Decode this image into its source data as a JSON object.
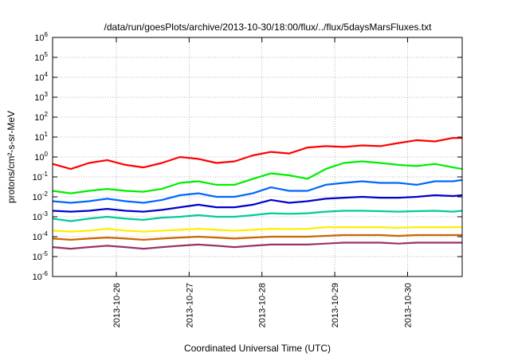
{
  "chart_data": {
    "type": "line",
    "title": "/data/run/goesPlots/archive/2013-10-30/18:00/flux/../flux/5daysMarsFluxes.txt",
    "xlabel": "Coordinated Universal Time (UTC)",
    "ylabel": "protons/cm²-s-sr-MeV",
    "yscale": "log",
    "xlim": [
      "2013-10-25 03:00",
      "2013-10-30 18:00"
    ],
    "ylim": [
      1e-06,
      1000000.0
    ],
    "x_ticks": [
      "2013-10-26",
      "2013-10-27",
      "2013-10-28",
      "2013-10-29",
      "2013-10-30"
    ],
    "y_ticks": [
      {
        "base": "10",
        "exp": "-6"
      },
      {
        "base": "10",
        "exp": "-5"
      },
      {
        "base": "10",
        "exp": "-4"
      },
      {
        "base": "10",
        "exp": "-3"
      },
      {
        "base": "10",
        "exp": "-2"
      },
      {
        "base": "10",
        "exp": "-1"
      },
      {
        "base": "10",
        "exp": "0"
      },
      {
        "base": "10",
        "exp": "1"
      },
      {
        "base": "10",
        "exp": "2"
      },
      {
        "base": "10",
        "exp": "3"
      },
      {
        "base": "10",
        "exp": "4"
      },
      {
        "base": "10",
        "exp": "5"
      },
      {
        "base": "10",
        "exp": "6"
      }
    ],
    "grid": true,
    "legend": "none",
    "x_dates": [
      "2013-10-25 03:00",
      "2013-10-25 09:00",
      "2013-10-25 15:00",
      "2013-10-25 21:00",
      "2013-10-26 03:00",
      "2013-10-26 09:00",
      "2013-10-26 15:00",
      "2013-10-26 21:00",
      "2013-10-27 03:00",
      "2013-10-27 09:00",
      "2013-10-27 15:00",
      "2013-10-27 21:00",
      "2013-10-28 03:00",
      "2013-10-28 09:00",
      "2013-10-28 15:00",
      "2013-10-28 21:00",
      "2013-10-29 03:00",
      "2013-10-29 09:00",
      "2013-10-29 15:00",
      "2013-10-29 21:00",
      "2013-10-30 03:00",
      "2013-10-30 09:00",
      "2013-10-30 15:00",
      "2013-10-30 18:00"
    ],
    "series": [
      {
        "color": "#ff0000",
        "values": [
          0.45,
          0.25,
          0.5,
          0.7,
          0.4,
          0.3,
          0.5,
          1.0,
          0.8,
          0.5,
          0.6,
          1.2,
          1.8,
          1.5,
          3.0,
          3.5,
          3.2,
          3.8,
          3.5,
          5.0,
          7.0,
          6.0,
          9.0,
          9.0
        ]
      },
      {
        "color": "#00ee00",
        "values": [
          0.02,
          0.015,
          0.02,
          0.025,
          0.02,
          0.018,
          0.025,
          0.05,
          0.06,
          0.04,
          0.04,
          0.08,
          0.15,
          0.12,
          0.08,
          0.25,
          0.5,
          0.6,
          0.5,
          0.4,
          0.35,
          0.45,
          0.3,
          0.25
        ]
      },
      {
        "color": "#0066ff",
        "values": [
          0.006,
          0.005,
          0.006,
          0.008,
          0.006,
          0.005,
          0.007,
          0.012,
          0.015,
          0.01,
          0.01,
          0.015,
          0.03,
          0.02,
          0.02,
          0.04,
          0.05,
          0.06,
          0.05,
          0.05,
          0.04,
          0.06,
          0.06,
          0.07
        ]
      },
      {
        "color": "#0000cc",
        "values": [
          0.002,
          0.0018,
          0.002,
          0.0025,
          0.002,
          0.0018,
          0.0022,
          0.003,
          0.004,
          0.003,
          0.003,
          0.004,
          0.007,
          0.005,
          0.006,
          0.008,
          0.009,
          0.01,
          0.009,
          0.009,
          0.01,
          0.012,
          0.011,
          0.012
        ]
      },
      {
        "color": "#00cc99",
        "values": [
          0.0008,
          0.0006,
          0.0008,
          0.001,
          0.0008,
          0.0007,
          0.0009,
          0.001,
          0.0012,
          0.001,
          0.001,
          0.0012,
          0.0015,
          0.0014,
          0.0015,
          0.0018,
          0.002,
          0.002,
          0.0019,
          0.0018,
          0.0019,
          0.002,
          0.0018,
          0.002
        ]
      },
      {
        "color": "#ffee00",
        "values": [
          0.0002,
          0.00018,
          0.0002,
          0.00025,
          0.0002,
          0.00018,
          0.0002,
          0.00022,
          0.00025,
          0.00022,
          0.0002,
          0.00022,
          0.00025,
          0.00024,
          0.00025,
          0.0003,
          0.0003,
          0.0003,
          0.0003,
          0.00028,
          0.0003,
          0.0003,
          0.0003,
          0.0003
        ]
      },
      {
        "color": "#cc6600",
        "values": [
          8e-05,
          7e-05,
          8e-05,
          9e-05,
          8e-05,
          7e-05,
          8e-05,
          9e-05,
          0.0001,
          9e-05,
          8e-05,
          9e-05,
          0.0001,
          0.0001,
          0.0001,
          0.00011,
          0.00012,
          0.00012,
          0.00012,
          0.00011,
          0.00012,
          0.00012,
          0.00012,
          0.00012
        ]
      },
      {
        "color": "#993366",
        "values": [
          3e-05,
          2.5e-05,
          3e-05,
          3.5e-05,
          3e-05,
          2.5e-05,
          3e-05,
          3.5e-05,
          4e-05,
          3.5e-05,
          3e-05,
          3.5e-05,
          4e-05,
          4e-05,
          4e-05,
          4.5e-05,
          5e-05,
          5e-05,
          5e-05,
          4.5e-05,
          5e-05,
          5e-05,
          5e-05,
          5e-05
        ]
      }
    ]
  }
}
